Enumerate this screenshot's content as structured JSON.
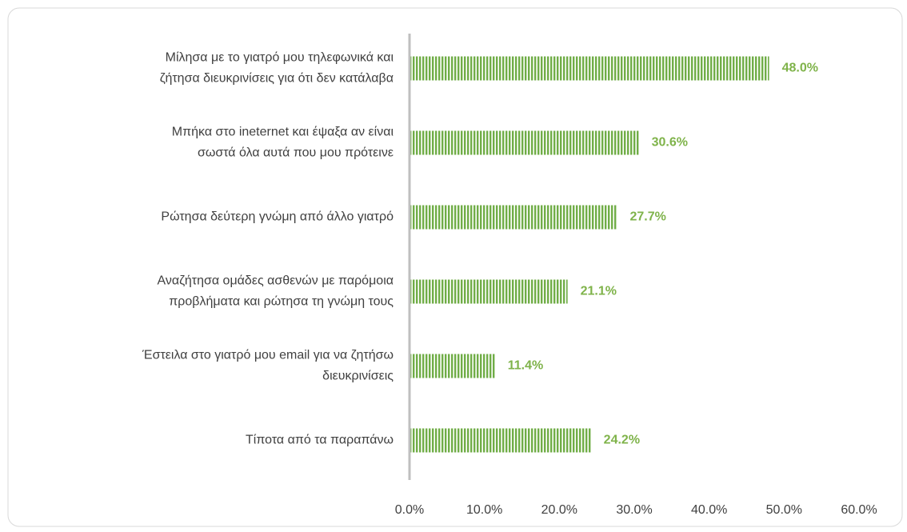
{
  "chart_data": {
    "type": "barh",
    "categories": [
      [
        "Μίλησα με το γιατρό μου τηλεφωνικά και",
        "ζήτησα διευκρινίσεις για ότι δεν κατάλαβα"
      ],
      [
        "Μπήκα στο ineternet και έψαξα αν είναι",
        "σωστά όλα αυτά που μου πρότεινε"
      ],
      [
        "Ρώτησα δεύτερη γνώμη από άλλο γιατρό"
      ],
      [
        "Αναζήτησα ομάδες ασθενών με παρόμοια",
        "προβλήματα και ρώτησα τη γνώμη τους"
      ],
      [
        "Έστειλα στο γιατρό μου email για να ζητήσω",
        "διευκρινίσεις"
      ],
      [
        "Τίποτα από τα παραπάνω"
      ]
    ],
    "values": [
      48.0,
      30.6,
      27.7,
      21.1,
      11.4,
      24.2
    ],
    "value_labels": [
      "48.0%",
      "30.6%",
      "27.7%",
      "21.1%",
      "11.4%",
      "24.2%"
    ],
    "color": "#70ad47",
    "xlim": [
      0,
      60
    ],
    "xticks": [
      {
        "value": 0,
        "label": "0.0%"
      },
      {
        "value": 10,
        "label": "10.0%"
      },
      {
        "value": 20,
        "label": "20.0%"
      },
      {
        "value": 30,
        "label": "30.0%"
      },
      {
        "value": 40,
        "label": "40.0%"
      },
      {
        "value": 50,
        "label": "50.0%"
      },
      {
        "value": 60,
        "label": "60.0%"
      }
    ]
  }
}
